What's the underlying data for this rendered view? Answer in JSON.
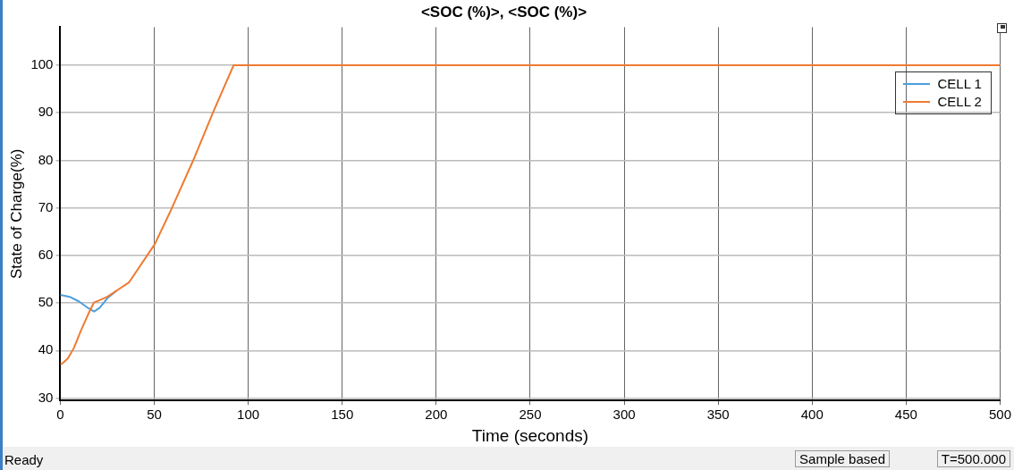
{
  "chart_data": {
    "type": "line",
    "title": "<SOC (%)>, <SOC (%)>",
    "xlabel": "Time (seconds)",
    "ylabel": "State of Charge(%)",
    "xlim": [
      0,
      500
    ],
    "xticks": [
      0,
      50,
      100,
      150,
      200,
      250,
      300,
      350,
      400,
      450,
      500
    ],
    "ylim": [
      29.5,
      108
    ],
    "yticks": [
      30,
      40,
      50,
      60,
      70,
      80,
      90,
      100
    ],
    "grid": true,
    "legend": "top right",
    "marker": "none",
    "line_style": "solid",
    "series": [
      {
        "name": "CELL 1",
        "color": "#4d9fdb",
        "x": [
          0,
          5,
          10,
          15,
          18,
          21,
          25,
          30
        ],
        "values": [
          51.7,
          51.3,
          50.3,
          48.9,
          48.2,
          49,
          51,
          52.6
        ]
      },
      {
        "name": "CELL 2",
        "color": "#f07a30",
        "x": [
          0,
          0.8,
          4,
          7.3,
          11,
          15.4,
          17.9,
          21,
          25,
          30,
          36.5,
          50.3,
          59.2,
          71.4,
          81.2,
          92.2,
          500
        ],
        "values": [
          37.2,
          37.2,
          38.3,
          40.6,
          44.2,
          48.1,
          50.1,
          50.6,
          51.3,
          52.6,
          54.3,
          62.4,
          69.8,
          80.6,
          90,
          100,
          100
        ]
      }
    ],
    "annotations": [
      "Ready",
      "Sample based",
      "T=500.000"
    ]
  }
}
